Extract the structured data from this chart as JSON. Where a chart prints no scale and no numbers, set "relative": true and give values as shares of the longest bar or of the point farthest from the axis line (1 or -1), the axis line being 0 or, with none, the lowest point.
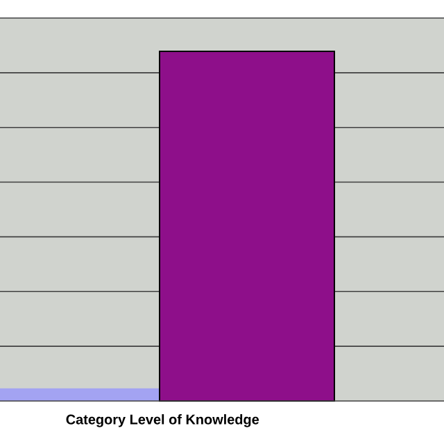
{
  "chart_data": {
    "type": "bar",
    "xlabel": "Category Level of Knowledge",
    "categories": [
      null,
      null
    ],
    "values": [
      0.036,
      1
    ],
    "colors": [
      "#a3a3f2",
      "#8e0f8a"
    ],
    "relative": true,
    "grid": "y"
  }
}
